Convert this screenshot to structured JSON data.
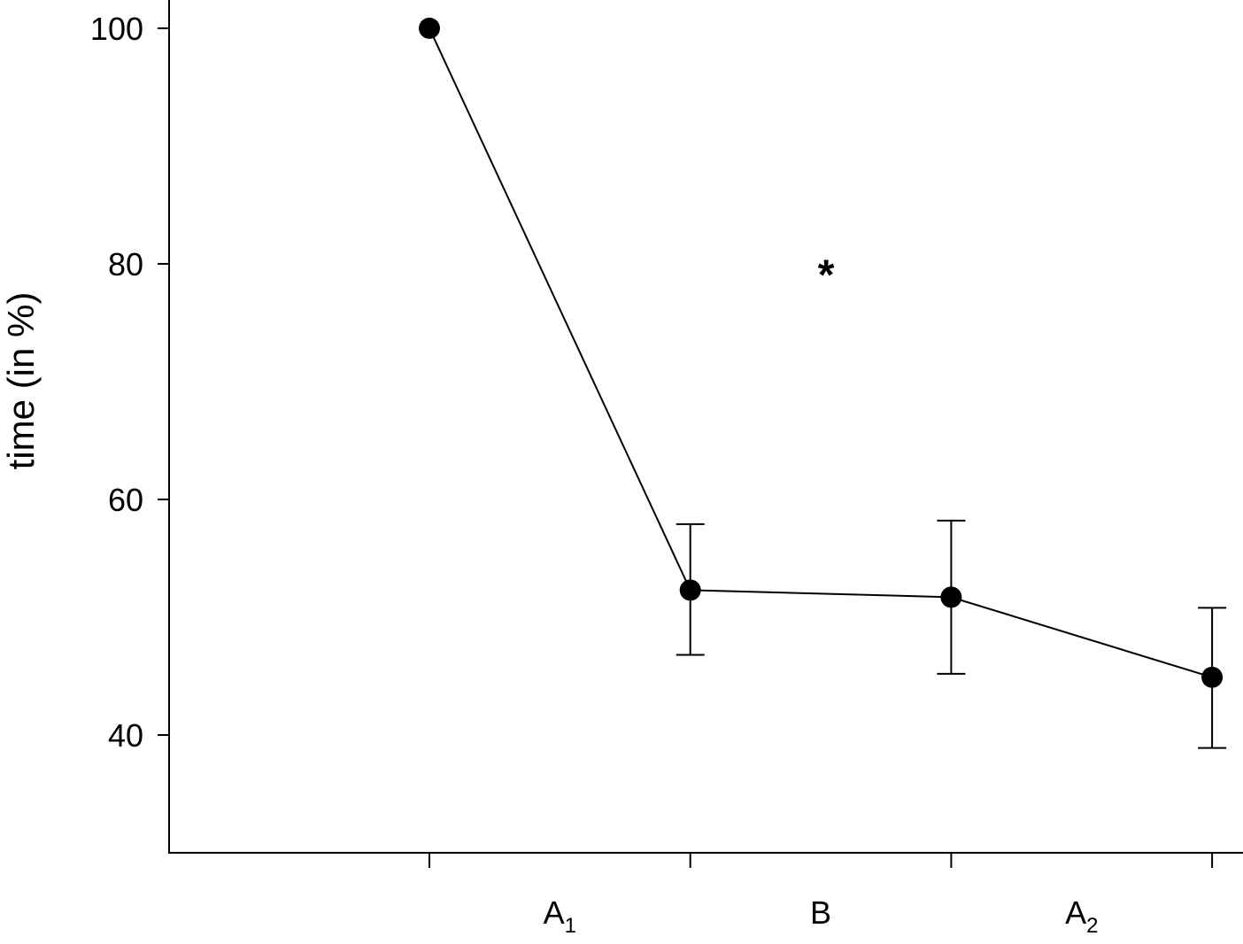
{
  "chart_data": {
    "type": "line",
    "title": "",
    "xlabel": "",
    "ylabel": "time (in %)",
    "yticks": [
      40,
      60,
      80,
      100
    ],
    "ylim": [
      30,
      102.4
    ],
    "grid": false,
    "x_points": 4,
    "x_category_labels": [
      {
        "main": "A",
        "sub": "1"
      },
      {
        "main": "B",
        "sub": ""
      },
      {
        "main": "A",
        "sub": "2"
      }
    ],
    "series": [
      {
        "values": [
          100,
          52.3,
          51.7,
          44.9
        ],
        "error_upper": [
          null,
          57.9,
          58.2,
          50.8
        ],
        "error_lower": [
          null,
          46.8,
          45.2,
          38.9
        ]
      }
    ],
    "annotations": [
      {
        "text": "*",
        "between": [
          1,
          2
        ],
        "y": 79.8
      },
      {
        "text": "*",
        "between": [
          3,
          4
        ],
        "y": 55.8
      }
    ]
  }
}
